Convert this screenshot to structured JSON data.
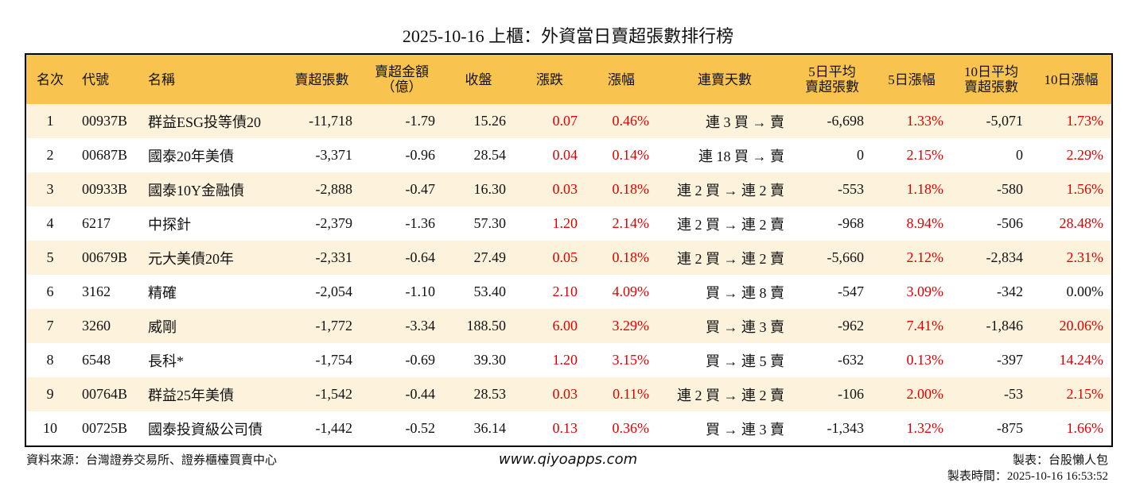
{
  "title": "2025-10-16 上櫃：外資當日賣超張數排行榜",
  "table": {
    "header": [
      [
        "名次"
      ],
      [
        "代號"
      ],
      [
        "名稱"
      ],
      [
        "賣超張數"
      ],
      [
        "賣超金額",
        "（億）"
      ],
      [
        "收盤"
      ],
      [
        "漲跌"
      ],
      [
        "漲幅"
      ],
      [
        "連賣天數"
      ],
      [
        "5日平均",
        "賣超張數"
      ],
      [
        "5日漲幅"
      ],
      [
        "10日平均",
        "賣超張數"
      ],
      [
        "10日漲幅"
      ]
    ],
    "rows": [
      [
        "1",
        "00937B",
        "群益ESG投等債20",
        "-11,718",
        "-1.79",
        "15.26",
        "0.07",
        "0.46%",
        "連 3 買 → 賣",
        "-6,698",
        "1.33%",
        "-5,071",
        "1.73%"
      ],
      [
        "2",
        "00687B",
        "國泰20年美債",
        "-3,371",
        "-0.96",
        "28.54",
        "0.04",
        "0.14%",
        "連 18 買 → 賣",
        "0",
        "2.15%",
        "0",
        "2.29%"
      ],
      [
        "3",
        "00933B",
        "國泰10Y金融債",
        "-2,888",
        "-0.47",
        "16.30",
        "0.03",
        "0.18%",
        "連 2 買 → 連 2 賣",
        "-553",
        "1.18%",
        "-580",
        "1.56%"
      ],
      [
        "4",
        "6217",
        "中探針",
        "-2,379",
        "-1.36",
        "57.30",
        "1.20",
        "2.14%",
        "連 2 買 → 連 2 賣",
        "-968",
        "8.94%",
        "-506",
        "28.48%"
      ],
      [
        "5",
        "00679B",
        "元大美債20年",
        "-2,331",
        "-0.64",
        "27.49",
        "0.05",
        "0.18%",
        "連 2 買 → 連 2 賣",
        "-5,660",
        "2.12%",
        "-2,834",
        "2.31%"
      ],
      [
        "6",
        "3162",
        "精確",
        "-2,054",
        "-1.10",
        "53.40",
        "2.10",
        "4.09%",
        "買 → 連 8 賣",
        "-547",
        "3.09%",
        "-342",
        "0.00%"
      ],
      [
        "7",
        "3260",
        "威剛",
        "-1,772",
        "-3.34",
        "188.50",
        "6.00",
        "3.29%",
        "買 → 連 3 賣",
        "-962",
        "7.41%",
        "-1,846",
        "20.06%"
      ],
      [
        "8",
        "6548",
        "長科*",
        "-1,754",
        "-0.69",
        "39.30",
        "1.20",
        "3.15%",
        "買 → 連 5 賣",
        "-632",
        "0.13%",
        "-397",
        "14.24%"
      ],
      [
        "9",
        "00764B",
        "群益25年美債",
        "-1,542",
        "-0.44",
        "28.53",
        "0.03",
        "0.11%",
        "連 2 買 → 連 2 賣",
        "-106",
        "2.00%",
        "-53",
        "2.15%"
      ],
      [
        "10",
        "00725B",
        "國泰投資級公司債",
        "-1,442",
        "-0.52",
        "36.14",
        "0.13",
        "0.36%",
        "買 → 連 3 賣",
        "-1,343",
        "1.32%",
        "-875",
        "1.66%"
      ]
    ]
  },
  "footer": {
    "source": "資料來源：台灣證券交易所、證券櫃檯買賣中心",
    "site": "www.qiyoapps.com",
    "maker": "製表：台股懶人包",
    "time": "製表時間：2025-10-16 16:53:52"
  }
}
